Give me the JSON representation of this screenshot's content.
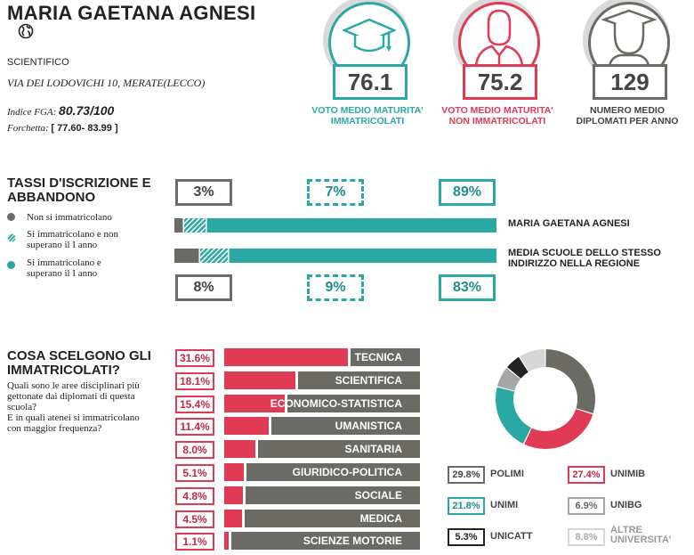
{
  "school": {
    "name": "MARIA GAETANA AGNESI",
    "type": "SCIENTIFICO",
    "address": "VIA DEI LODOVICHI 10, MERATE(LECCO)",
    "fga_label": "Indice FGA:",
    "fga_value": "80.73/100",
    "forchetta_label": "Forchetta:",
    "forchetta_value": "[ 77.60- 83.99 ]"
  },
  "kpis": [
    {
      "value": "76.1",
      "label1": "VOTO MEDIO MATURITA'",
      "label2": "IMMATRICOLATI",
      "color": "#2aa9a4",
      "icon": "graduation-cap-icon"
    },
    {
      "value": "75.2",
      "label1": "VOTO MEDIO MATURITA'",
      "label2": "NON IMMATRICOLATI",
      "color": "#e03a55",
      "icon": "person-icon"
    },
    {
      "value": "129",
      "label1": "NUMERO MEDIO",
      "label2": "DIPLOMATI PER ANNO",
      "color": "#6b6a64",
      "icon": "graduate-icon"
    }
  ],
  "tassi": {
    "title1": "TASSI D'ISCRIZIONE E",
    "title2": "ABBANDONO",
    "legend": [
      {
        "text1": "Non si immatricolano",
        "text2": "",
        "color": "#6b6a64"
      },
      {
        "text1": "Si immatricolano e non",
        "text2": "superano il I anno",
        "color": "#2aa9a4"
      },
      {
        "text1": "Si immatricolano e",
        "text2": "superano il I anno",
        "color": "#2aa9a4"
      }
    ],
    "rows": [
      {
        "label1": "MARIA GAETANA AGNESI",
        "label2": "",
        "values": [
          "3%",
          "7%",
          "89%"
        ],
        "shares": [
          3,
          7,
          89
        ]
      },
      {
        "label1": "MEDIA SCUOLE DELLO STESSO",
        "label2": "INDIRIZZO NELLA REGIONE",
        "values": [
          "8%",
          "9%",
          "83%"
        ],
        "shares": [
          8,
          9,
          83
        ]
      }
    ],
    "colors": {
      "none": "#6b6a64",
      "dropout": "#2aa9a4",
      "success": "#2aa9a4"
    }
  },
  "scelte": {
    "title1": "COSA SCELGONO GLI",
    "title2": "IMMATRICOLATI?",
    "desc": [
      "Quali sono le aree disciplinari più",
      "gettonate dai diplomati di questa",
      "scuola?",
      "E in quali atenei si immatricolano",
      "con maggior frequenza?"
    ]
  },
  "chart_data": [
    {
      "type": "bar",
      "title": "COSA SCELGONO GLI IMMATRICOLATI?",
      "categories": [
        "TECNICA",
        "SCIENTIFICA",
        "ECONOMICO-STATISTICA",
        "UMANISTICA",
        "SANITARIA",
        "GIURIDICO-POLITICA",
        "SOCIALE",
        "MEDICA",
        "SCIENZE MOTORIE"
      ],
      "values": [
        31.6,
        18.1,
        15.4,
        11.4,
        8.0,
        5.1,
        4.8,
        4.5,
        1.1
      ],
      "labels": [
        "31.6%",
        "18.1%",
        "15.4%",
        "11.4%",
        "8.0%",
        "5.1%",
        "4.8%",
        "4.5%",
        "1.1%"
      ],
      "ylim": [
        0,
        100
      ]
    },
    {
      "type": "pie",
      "categories": [
        "POLIMI",
        "UNIMIB",
        "UNIMI",
        "UNIBG",
        "UNICATT",
        "ALTRE UNIVERSITA'"
      ],
      "values": [
        29.8,
        27.4,
        21.8,
        6.9,
        5.3,
        8.8
      ],
      "labels": [
        "29.8%",
        "27.4%",
        "21.8%",
        "6.9%",
        "5.3%",
        "8.8%"
      ],
      "colors": [
        "#6b6a64",
        "#e03a55",
        "#2aa9a4",
        "#a6a6a6",
        "#222222",
        "#d6d6d6"
      ],
      "text_colors": [
        "#444444",
        "#c22a45",
        "#1f8f8b",
        "#666666",
        "#222222",
        "#aaaaaa"
      ],
      "legend_lines": [
        [
          "POLIMI"
        ],
        [
          "UNIMIB"
        ],
        [
          "UNIMI"
        ],
        [
          "UNIBG"
        ],
        [
          "UNICATT"
        ],
        [
          "ALTRE",
          "UNIVERSITA'"
        ]
      ]
    }
  ]
}
